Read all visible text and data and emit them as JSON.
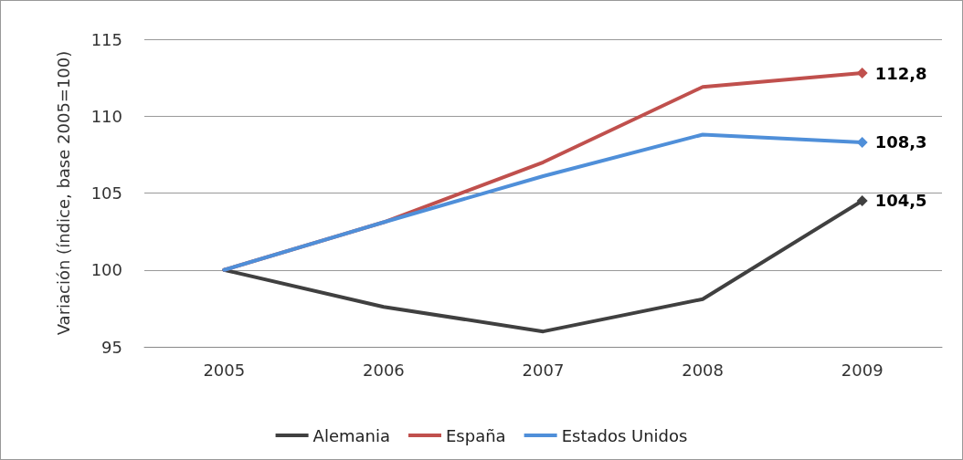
{
  "chart_data": {
    "type": "line",
    "ylabel": "Variación (índice, base 2005=100)",
    "categories": [
      "2005",
      "2006",
      "2007",
      "2008",
      "2009"
    ],
    "series": [
      {
        "name": "Alemania",
        "color": "#404040",
        "values": [
          100,
          97.6,
          96.0,
          98.1,
          104.5
        ],
        "value_labels": [
          null,
          null,
          null,
          null,
          "104,5"
        ]
      },
      {
        "name": "España",
        "color": "#c0504d",
        "values": [
          100,
          103.1,
          107.0,
          111.9,
          112.8
        ],
        "value_labels": [
          null,
          null,
          null,
          null,
          "112,8"
        ]
      },
      {
        "name": "Estados Unidos",
        "color": "#4f8fd9",
        "values": [
          100,
          103.1,
          106.1,
          108.8,
          108.3
        ],
        "value_labels": [
          null,
          null,
          null,
          null,
          "108,3"
        ]
      }
    ],
    "ylim": [
      95,
      115
    ],
    "yticks": [
      95,
      100,
      105,
      110,
      115
    ],
    "grid": "y",
    "legend": "bottom"
  }
}
